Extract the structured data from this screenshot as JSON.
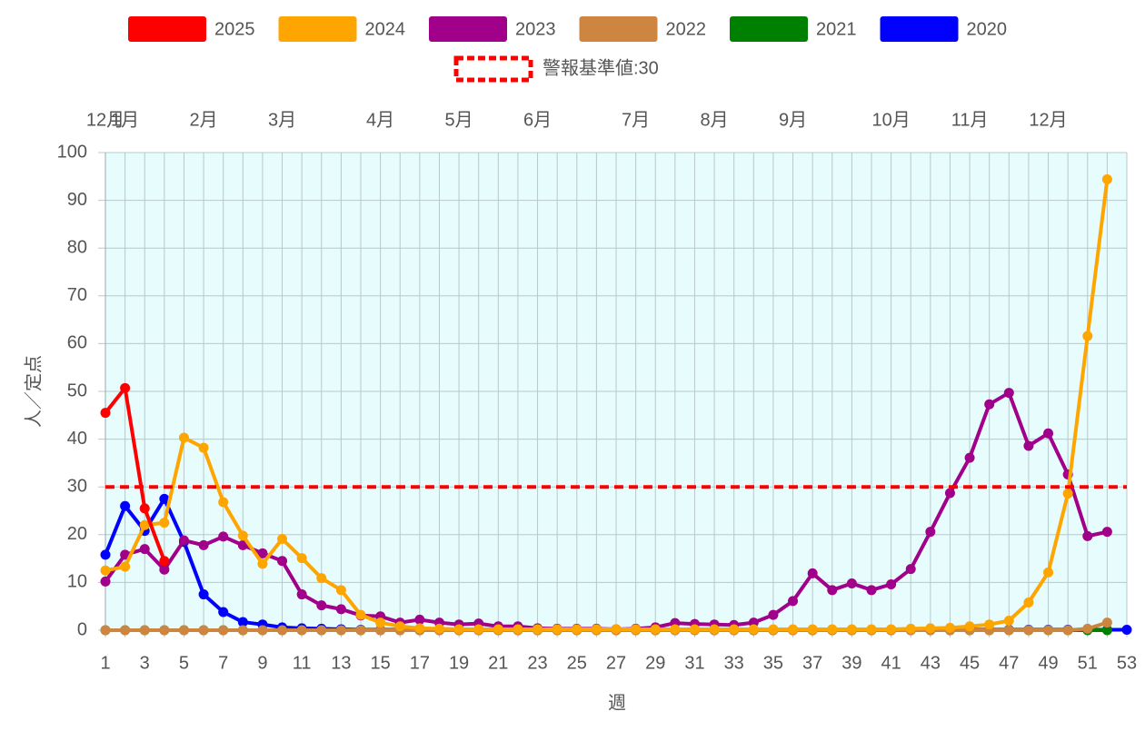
{
  "chart_data": {
    "type": "line",
    "x_label": "週",
    "y_label": "人／定点",
    "categories": [
      "1",
      null,
      "3",
      null,
      "5",
      null,
      "7",
      null,
      "9",
      null,
      "11",
      null,
      "13",
      null,
      "15",
      null,
      "17",
      null,
      "19",
      null,
      "21",
      null,
      "23",
      null,
      "25",
      null,
      "27",
      null,
      "29",
      null,
      "31",
      null,
      "33",
      null,
      "35",
      null,
      "37",
      null,
      "39",
      null,
      "41",
      null,
      "43",
      null,
      "45",
      null,
      "47",
      null,
      "49",
      null,
      "51",
      null,
      "53"
    ],
    "top_ticks": [
      {
        "value": 1,
        "label": "12月"
      },
      {
        "value": 2,
        "label": "1月"
      },
      {
        "value": 6,
        "label": "2月"
      },
      {
        "value": 10,
        "label": "3月"
      },
      {
        "value": 15,
        "label": "4月"
      },
      {
        "value": 19,
        "label": "5月"
      },
      {
        "value": 23,
        "label": "6月"
      },
      {
        "value": 28,
        "label": "7月"
      },
      {
        "value": 32,
        "label": "8月"
      },
      {
        "value": 36,
        "label": "9月"
      },
      {
        "value": 41,
        "label": "10月"
      },
      {
        "value": 45,
        "label": "11月"
      },
      {
        "value": 49,
        "label": "12月"
      }
    ],
    "ylim": [
      0,
      100
    ],
    "yticks": [
      0,
      10,
      20,
      30,
      40,
      50,
      60,
      70,
      80,
      90,
      100
    ],
    "grid": true,
    "threshold": {
      "label": "警報基準値:30",
      "value": 30,
      "color": "#ff0000"
    },
    "series": [
      {
        "name": "2025",
        "color": "#ff0000",
        "values": [
          45.5,
          50.7,
          25.5,
          14.5,
          null,
          null,
          null,
          null,
          null,
          null,
          null,
          null,
          null,
          null,
          null,
          null,
          null,
          null,
          null,
          null,
          null,
          null,
          null,
          null,
          null,
          null,
          null,
          null,
          null,
          null,
          null,
          null,
          null,
          null,
          null,
          null,
          null,
          null,
          null,
          null,
          null,
          null,
          null,
          null,
          null,
          null,
          null,
          null,
          null,
          null,
          null,
          null,
          null
        ]
      },
      {
        "name": "2024",
        "color": "#ffa500",
        "values": [
          12.5,
          13.3,
          22,
          22.5,
          40.3,
          38.2,
          26.8,
          19.8,
          13.9,
          19.1,
          15.1,
          10.9,
          8.4,
          3.2,
          1.6,
          0.8,
          0.4,
          0.3,
          0.2,
          0.2,
          0.2,
          0.2,
          0.2,
          0.2,
          0.2,
          0.2,
          0.2,
          0.2,
          0.2,
          0.2,
          0.2,
          0.2,
          0.2,
          0.2,
          0.2,
          0.2,
          0.2,
          0.2,
          0.2,
          0.2,
          0.2,
          0.3,
          0.4,
          0.5,
          0.8,
          1.2,
          2,
          5.8,
          12.1,
          28.6,
          61.6,
          94.4,
          null
        ]
      },
      {
        "name": "2023",
        "color": "#a0008a",
        "values": [
          10.2,
          15.8,
          17,
          12.7,
          18.8,
          17.8,
          19.6,
          17.8,
          16.1,
          14.5,
          7.5,
          5.2,
          4.4,
          3.1,
          2.9,
          1.6,
          2.2,
          1.6,
          1.2,
          1.4,
          0.8,
          0.8,
          0.4,
          0.3,
          0.3,
          0.3,
          0.2,
          0.3,
          0.6,
          1.5,
          1.3,
          1.2,
          1.1,
          1.6,
          3.2,
          6.1,
          11.9,
          8.4,
          9.8,
          8.4,
          9.6,
          12.8,
          20.6,
          28.7,
          36.1,
          47.3,
          49.7,
          38.6,
          41.2,
          32.6,
          19.7,
          20.6,
          null
        ]
      },
      {
        "name": "2022",
        "color": "#cd853f",
        "values": [
          0,
          0,
          0,
          0,
          0,
          0,
          0,
          0,
          0,
          0,
          0,
          0,
          0,
          0,
          0,
          0,
          0,
          0,
          0,
          0,
          0,
          0,
          0,
          0,
          0,
          0,
          0,
          0,
          0,
          0,
          0,
          0,
          0,
          0,
          0,
          0,
          0,
          0,
          0,
          0,
          0,
          0,
          0,
          0,
          0,
          0,
          0,
          0,
          0,
          0,
          0.3,
          1.6,
          null
        ]
      },
      {
        "name": "2021",
        "color": "#008000",
        "values": [
          0,
          0,
          0,
          0,
          0,
          0,
          0,
          0,
          0,
          0,
          0,
          0,
          0,
          0,
          0,
          0,
          0,
          0,
          0,
          0,
          0,
          0,
          0,
          0,
          0,
          0,
          0,
          0,
          0,
          0,
          0,
          0,
          0,
          0,
          0,
          0,
          0,
          0,
          0,
          0,
          0,
          0,
          0,
          0,
          0,
          0,
          0,
          0,
          0,
          0,
          0,
          0,
          null
        ]
      },
      {
        "name": "2020",
        "color": "#0000ff",
        "values": [
          15.8,
          26,
          20.8,
          27.5,
          18.5,
          7.5,
          3.8,
          1.7,
          1.2,
          0.6,
          0.4,
          0.3,
          0.2,
          0.1,
          0.1,
          0.1,
          0.1,
          0.1,
          0.1,
          0.1,
          0.1,
          0.1,
          0.1,
          0.1,
          0.1,
          0.1,
          0.1,
          0.1,
          0.1,
          0.1,
          0.1,
          0.1,
          0.1,
          0.1,
          0.1,
          0.1,
          0.1,
          0.1,
          0.1,
          0.1,
          0.1,
          0.1,
          0.1,
          0.1,
          0.1,
          0.1,
          0.1,
          0.1,
          0.1,
          0.1,
          0.1,
          0.1,
          0.1
        ]
      }
    ]
  }
}
